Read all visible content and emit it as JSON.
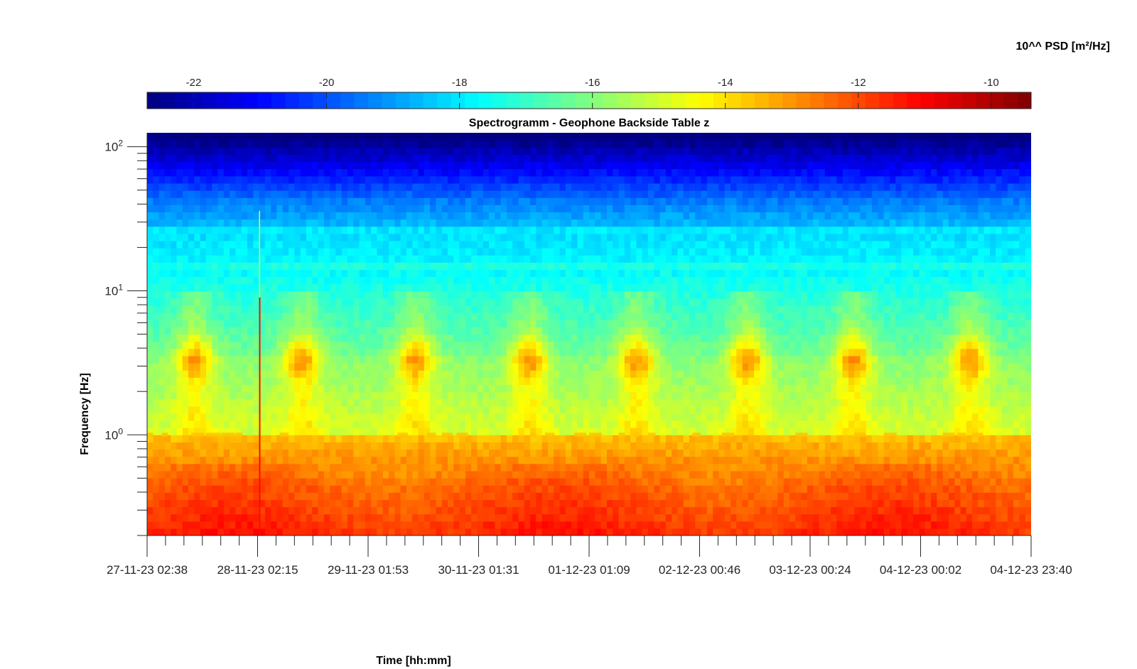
{
  "chart_data": {
    "type": "heatmap",
    "title": "Spectrogramm - Geophone Backside Table z",
    "xlabel": "Time [hh:mm]",
    "ylabel": "Frequency [Hz]",
    "x_ticks": [
      "27-11-23 02:38",
      "28-11-23 02:15",
      "29-11-23 01:53",
      "30-11-23 01:31",
      "01-12-23 01:09",
      "02-12-23 00:46",
      "03-12-23 00:24",
      "04-12-23 00:02",
      "04-12-23 23:40"
    ],
    "y_scale": "log",
    "y_range": [
      0.2,
      125
    ],
    "y_ticks": [
      {
        "base": "10",
        "exp": "2",
        "value": 100
      },
      {
        "base": "10",
        "exp": "1",
        "value": 10
      },
      {
        "base": "10",
        "exp": "0",
        "value": 1
      }
    ],
    "colorbar": {
      "label": "10^^ PSD [m²/Hz]",
      "range": [
        -22.7,
        -9.4
      ],
      "ticks": [
        "-22",
        "-20",
        "-18",
        "-16",
        "-14",
        "-12",
        "-10"
      ],
      "tick_values": [
        -22,
        -20,
        -18,
        -16,
        -14,
        -12,
        -10
      ],
      "colormap": "jet"
    },
    "features": {
      "daily_activity_band_hz": [
        2.5,
        4.5
      ],
      "activity_days": 8,
      "line_at_1hz": true,
      "transient_event_x_day": 1.0
    }
  }
}
